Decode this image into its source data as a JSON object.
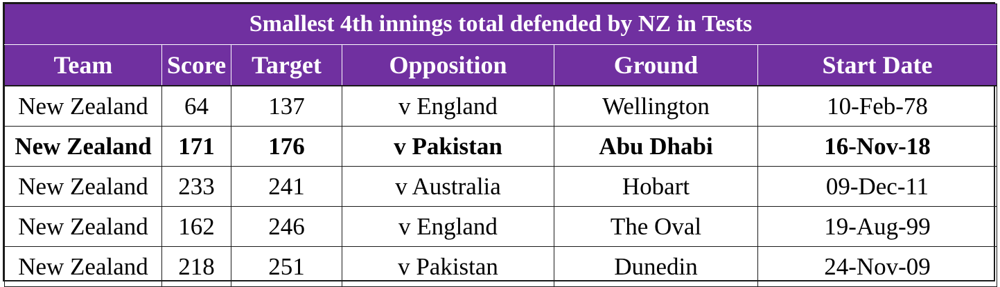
{
  "title": "Smallest 4th innings total defended by NZ in Tests",
  "header_color": "#7030a0",
  "columns": [
    "Team",
    "Score",
    "Target",
    "Opposition",
    "Ground",
    "Start Date"
  ],
  "rows": [
    {
      "team": "New Zealand",
      "score": "64",
      "target": "137",
      "opposition": "v England",
      "ground": "Wellington",
      "start_date": "10-Feb-78",
      "bold": false
    },
    {
      "team": "New Zealand",
      "score": "171",
      "target": "176",
      "opposition": "v Pakistan",
      "ground": "Abu Dhabi",
      "start_date": "16-Nov-18",
      "bold": true
    },
    {
      "team": "New Zealand",
      "score": "233",
      "target": "241",
      "opposition": "v Australia",
      "ground": "Hobart",
      "start_date": "09-Dec-11",
      "bold": false
    },
    {
      "team": "New Zealand",
      "score": "162",
      "target": "246",
      "opposition": "v England",
      "ground": "The Oval",
      "start_date": "19-Aug-99",
      "bold": false
    },
    {
      "team": "New Zealand",
      "score": "218",
      "target": "251",
      "opposition": "v Pakistan",
      "ground": "Dunedin",
      "start_date": "24-Nov-09",
      "bold": false
    }
  ]
}
